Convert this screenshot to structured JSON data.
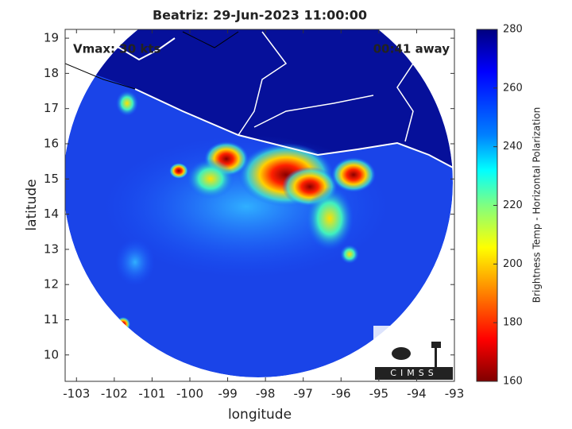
{
  "chart_data": {
    "type": "map",
    "title": "Beatriz: 29-Jun-2023 11:00:00",
    "annotations": [
      "Vmax: 30 kts",
      "00:41 away"
    ],
    "x_label": "longitude",
    "y_label": "latitude",
    "xlim": [
      -103.3,
      -93
    ],
    "ylim": [
      9.25,
      19.25
    ],
    "xticks": [
      -103,
      -102,
      -101,
      -100,
      -99,
      -98,
      -97,
      -96,
      -95,
      -94,
      -93
    ],
    "yticks": [
      10,
      11,
      12,
      13,
      14,
      15,
      16,
      17,
      18,
      19
    ],
    "colorbar": {
      "label": "Brightness Temp - Horizontal Polarization",
      "lim": [
        160,
        280
      ],
      "ticks": [
        160,
        180,
        200,
        220,
        240,
        260,
        280
      ]
    }
  },
  "logo": "CIMSS"
}
